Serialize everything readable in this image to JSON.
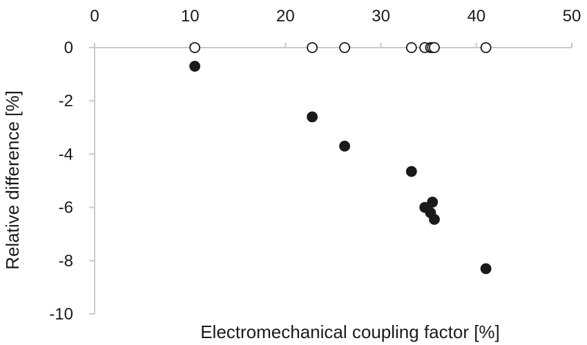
{
  "chart_data": {
    "type": "scatter",
    "title": "",
    "xlabel": "Electromechanical coupling factor [%]",
    "ylabel": "Relative difference [%]",
    "xlim": [
      0,
      50
    ],
    "ylim": [
      -10,
      0
    ],
    "x_ticks": [
      0,
      10,
      20,
      30,
      40,
      50
    ],
    "y_ticks": [
      0,
      -2,
      -4,
      -6,
      -8,
      -10
    ],
    "x_tick_labels": [
      "0",
      "10",
      "20",
      "30",
      "40",
      "50"
    ],
    "y_tick_labels": [
      "0",
      "-2",
      "-4",
      "-6",
      "-8",
      "-10"
    ],
    "x_axis_position": "top",
    "grid": false,
    "legend": "none",
    "series": [
      {
        "marker": "open-circle",
        "color": "#1a1a1a",
        "points": [
          {
            "x": 10.5,
            "y": 0
          },
          {
            "x": 22.8,
            "y": 0
          },
          {
            "x": 26.2,
            "y": 0
          },
          {
            "x": 33.2,
            "y": 0
          },
          {
            "x": 34.6,
            "y": 0
          },
          {
            "x": 35.2,
            "y": 0
          },
          {
            "x": 35.4,
            "y": 0
          },
          {
            "x": 35.6,
            "y": 0
          },
          {
            "x": 41.0,
            "y": 0
          }
        ]
      },
      {
        "marker": "filled-circle",
        "color": "#1a1a1a",
        "points": [
          {
            "x": 10.5,
            "y": -0.7
          },
          {
            "x": 22.8,
            "y": -2.6
          },
          {
            "x": 26.2,
            "y": -3.7
          },
          {
            "x": 33.2,
            "y": -4.65
          },
          {
            "x": 34.6,
            "y": -6.0
          },
          {
            "x": 35.2,
            "y": -6.2
          },
          {
            "x": 35.4,
            "y": -5.8
          },
          {
            "x": 35.6,
            "y": -6.45
          },
          {
            "x": 41.0,
            "y": -8.3
          }
        ]
      }
    ]
  }
}
